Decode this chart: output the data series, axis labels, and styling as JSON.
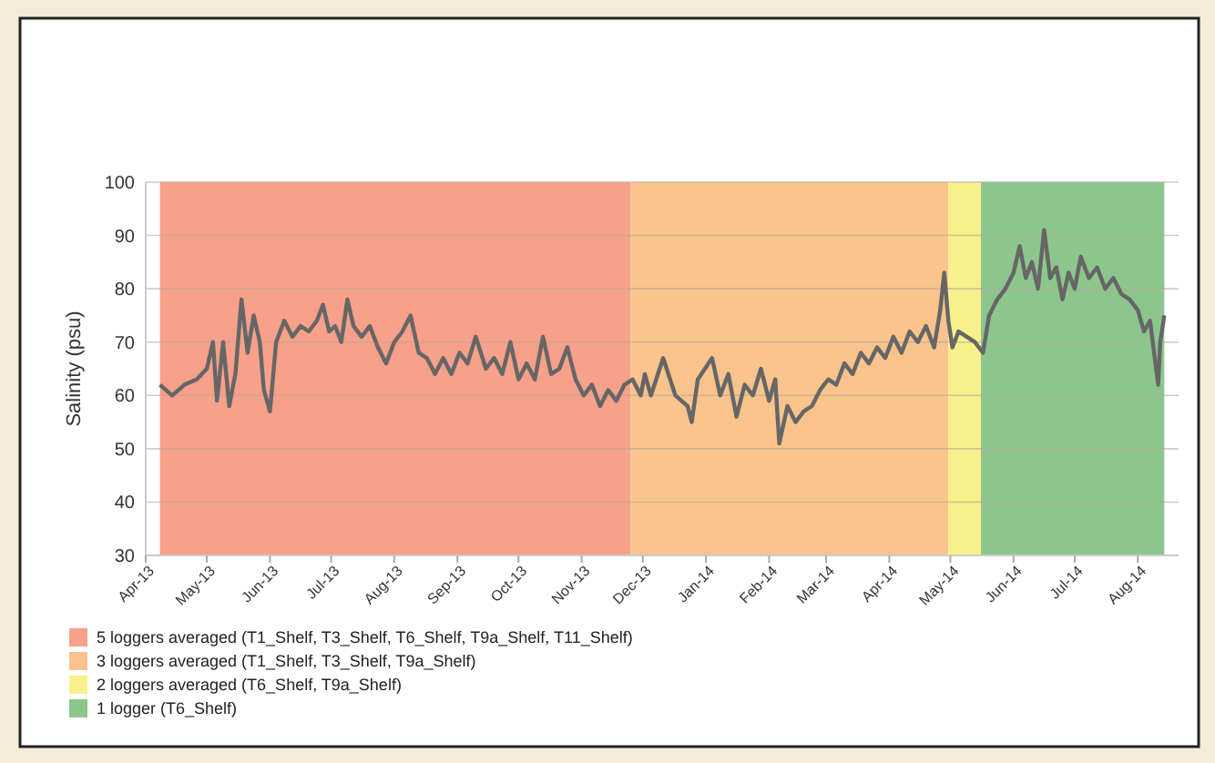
{
  "chart_data": {
    "type": "line",
    "ylabel": "Salinity (psu)",
    "ylim": [
      30,
      100
    ],
    "yticks": [
      30,
      40,
      50,
      60,
      70,
      80,
      90,
      100
    ],
    "xlim": [
      "2013-04-01",
      "2014-08-21"
    ],
    "xticks": [
      {
        "value": "2013-04-01",
        "label": "Apr-13"
      },
      {
        "value": "2013-05-01",
        "label": "May-13"
      },
      {
        "value": "2013-06-01",
        "label": "Jun-13"
      },
      {
        "value": "2013-07-01",
        "label": "Jul-13"
      },
      {
        "value": "2013-08-01",
        "label": "Aug-13"
      },
      {
        "value": "2013-09-01",
        "label": "Sep-13"
      },
      {
        "value": "2013-10-01",
        "label": "Oct-13"
      },
      {
        "value": "2013-11-01",
        "label": "Nov-13"
      },
      {
        "value": "2013-12-01",
        "label": "Dec-13"
      },
      {
        "value": "2014-01-01",
        "label": "Jan-14"
      },
      {
        "value": "2014-02-01",
        "label": "Feb-14"
      },
      {
        "value": "2014-03-01",
        "label": "Mar-14"
      },
      {
        "value": "2014-04-01",
        "label": "Apr-14"
      },
      {
        "value": "2014-05-01",
        "label": "May-14"
      },
      {
        "value": "2014-06-01",
        "label": "Jun-14"
      },
      {
        "value": "2014-07-01",
        "label": "Jul-14"
      },
      {
        "value": "2014-08-01",
        "label": "Aug-14"
      }
    ],
    "grid": "y",
    "legend": "bottom",
    "line_style": "solid",
    "marker": "none",
    "bands": [
      {
        "axis": "x",
        "from": "2013-04-08",
        "to": "2013-11-25",
        "label": "5 loggers averaged (T1_Shelf, T3_Shelf, T6_Shelf, T9a_Shelf, T11_Shelf)",
        "color": "#f7a08a"
      },
      {
        "axis": "x",
        "from": "2013-11-25",
        "to": "2014-04-30",
        "label": "3 loggers averaged (T1_Shelf, T3_Shelf, T9a_Shelf)",
        "color": "#f9c38c"
      },
      {
        "axis": "x",
        "from": "2014-04-30",
        "to": "2014-05-16",
        "label": "2 loggers averaged (T6_Shelf, T9a_Shelf)",
        "color": "#f8f08a"
      },
      {
        "axis": "x",
        "from": "2014-05-16",
        "to": "2014-08-14",
        "label": "1 logger (T6_Shelf)",
        "color": "#8cc68c"
      }
    ],
    "series": [
      {
        "color": "#666666",
        "x": [
          "2013-04-08",
          "2013-04-14",
          "2013-04-20",
          "2013-04-26",
          "2013-05-01",
          "2013-05-04",
          "2013-05-06",
          "2013-05-09",
          "2013-05-12",
          "2013-05-15",
          "2013-05-18",
          "2013-05-21",
          "2013-05-24",
          "2013-05-27",
          "2013-05-29",
          "2013-06-01",
          "2013-06-04",
          "2013-06-08",
          "2013-06-12",
          "2013-06-16",
          "2013-06-20",
          "2013-06-24",
          "2013-06-27",
          "2013-06-30",
          "2013-07-03",
          "2013-07-06",
          "2013-07-09",
          "2013-07-12",
          "2013-07-16",
          "2013-07-20",
          "2013-07-24",
          "2013-07-28",
          "2013-08-01",
          "2013-08-05",
          "2013-08-09",
          "2013-08-13",
          "2013-08-17",
          "2013-08-21",
          "2013-08-25",
          "2013-08-29",
          "2013-09-02",
          "2013-09-06",
          "2013-09-10",
          "2013-09-15",
          "2013-09-19",
          "2013-09-23",
          "2013-09-27",
          "2013-10-01",
          "2013-10-05",
          "2013-10-09",
          "2013-10-13",
          "2013-10-17",
          "2013-10-21",
          "2013-10-25",
          "2013-10-29",
          "2013-11-02",
          "2013-11-06",
          "2013-11-10",
          "2013-11-14",
          "2013-11-18",
          "2013-11-22",
          "2013-11-26",
          "2013-11-30",
          "2013-12-02",
          "2013-12-05",
          "2013-12-11",
          "2013-12-17",
          "2013-12-23",
          "2013-12-25",
          "2013-12-28",
          "2014-01-04",
          "2014-01-08",
          "2014-01-12",
          "2014-01-16",
          "2014-01-20",
          "2014-01-24",
          "2014-01-28",
          "2014-02-01",
          "2014-02-04",
          "2014-02-06",
          "2014-02-10",
          "2014-02-14",
          "2014-02-18",
          "2014-02-22",
          "2014-02-26",
          "2014-03-02",
          "2014-03-06",
          "2014-03-10",
          "2014-03-14",
          "2014-03-18",
          "2014-03-22",
          "2014-03-26",
          "2014-03-30",
          "2014-04-03",
          "2014-04-07",
          "2014-04-11",
          "2014-04-15",
          "2014-04-19",
          "2014-04-23",
          "2014-04-26",
          "2014-04-28",
          "2014-04-30",
          "2014-05-02",
          "2014-05-05",
          "2014-05-09",
          "2014-05-13",
          "2014-05-17",
          "2014-05-20",
          "2014-05-24",
          "2014-05-28",
          "2014-06-01",
          "2014-06-04",
          "2014-06-07",
          "2014-06-10",
          "2014-06-13",
          "2014-06-16",
          "2014-06-19",
          "2014-06-22",
          "2014-06-25",
          "2014-06-28",
          "2014-07-01",
          "2014-07-04",
          "2014-07-08",
          "2014-07-12",
          "2014-07-16",
          "2014-07-20",
          "2014-07-24",
          "2014-07-28",
          "2014-08-01",
          "2014-08-04",
          "2014-08-07",
          "2014-08-09",
          "2014-08-11",
          "2014-08-12",
          "2014-08-14"
        ],
        "values": [
          62,
          60,
          62,
          63,
          65,
          70,
          59,
          70,
          58,
          64,
          78,
          68,
          75,
          70,
          61,
          57,
          70,
          74,
          71,
          73,
          72,
          74,
          77,
          72,
          73,
          70,
          78,
          73,
          71,
          73,
          69,
          66,
          70,
          72,
          75,
          68,
          67,
          64,
          67,
          64,
          68,
          66,
          71,
          65,
          67,
          64,
          70,
          63,
          66,
          63,
          71,
          64,
          65,
          69,
          63,
          60,
          62,
          58,
          61,
          59,
          62,
          63,
          60,
          64,
          60,
          67,
          60,
          58,
          55,
          63,
          67,
          60,
          64,
          56,
          62,
          60,
          65,
          59,
          63,
          51,
          58,
          55,
          57,
          58,
          61,
          63,
          62,
          66,
          64,
          68,
          66,
          69,
          67,
          71,
          68,
          72,
          70,
          73,
          69,
          76,
          83,
          74,
          69,
          72,
          71,
          70,
          68,
          75,
          78,
          80,
          83,
          88,
          82,
          85,
          80,
          91,
          82,
          84,
          78,
          83,
          80,
          86,
          82,
          84,
          80,
          82,
          79,
          78,
          76,
          72,
          74,
          68,
          62,
          70,
          75
        ]
      }
    ]
  }
}
